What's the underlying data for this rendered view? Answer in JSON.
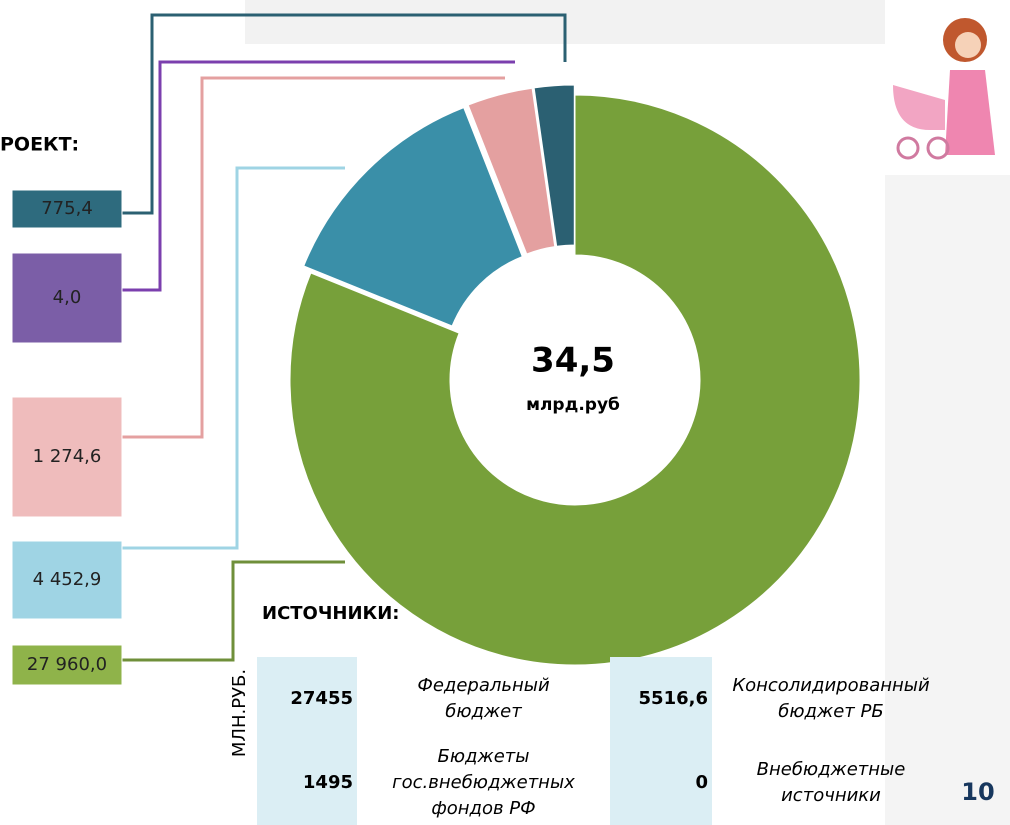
{
  "chart_data": {
    "type": "pie",
    "heading": "РОЕКТ:",
    "center_label": "34,5",
    "center_sublabel": "млрд.руб",
    "categories": [
      null,
      null,
      null,
      null,
      null
    ],
    "values": [
      27960.0,
      4452.9,
      1274.6,
      4.0,
      775.4
    ],
    "value_labels": [
      "27 960,0",
      "4 452,9",
      "1 274,6",
      "4,0",
      "775,4"
    ],
    "colors": [
      "#77a03a",
      "#3a8fa8",
      "#e4a0a0",
      "#7b5ea7",
      "#2b6072"
    ],
    "label_colors": [
      "#8fb34a",
      "#9fd4e4",
      "#efbcbc",
      "#7b5ea7",
      "#2e6b7e"
    ]
  },
  "sources": {
    "title": "ИСТОЧНИКИ:",
    "unit": "МЛН.РУБ.",
    "rows": [
      [
        {
          "amount": "27455",
          "name": "Федеральный бюджет"
        },
        {
          "amount": "5516,6",
          "name": "Консолидированный бюджет РБ"
        }
      ],
      [
        {
          "amount": "1495",
          "name": "Бюджеты гос.внебюджетных фондов РФ"
        },
        {
          "amount": "0",
          "name": "Внебюджетные источники"
        }
      ]
    ]
  },
  "page_number": "10"
}
